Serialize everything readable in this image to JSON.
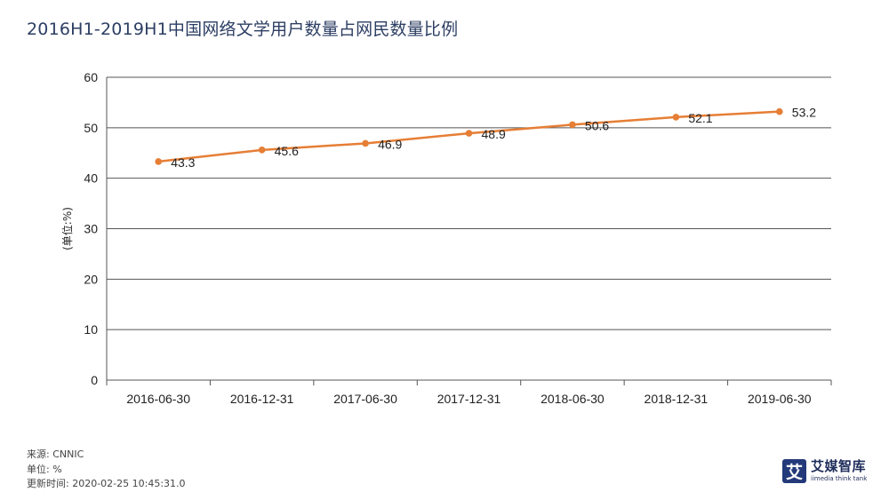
{
  "title": "2016H1-2019H1中国网络文学用户数量占网民数量比例",
  "chart_data": {
    "type": "line",
    "title": "2016H1-2019H1中国网络文学用户数量占网民数量比例",
    "xlabel": "",
    "ylabel": "(单位:%)",
    "categories": [
      "2016-06-30",
      "2016-12-31",
      "2017-06-30",
      "2017-12-31",
      "2018-06-30",
      "2018-12-31",
      "2019-06-30"
    ],
    "series": [
      {
        "values": [
          43.3,
          45.6,
          46.9,
          48.9,
          50.6,
          52.1,
          53.2
        ]
      }
    ],
    "ylim": [
      0,
      60
    ],
    "yticks": [
      0,
      10,
      20,
      30,
      40,
      50,
      60
    ],
    "grid": true,
    "color": "#e67e35",
    "data_labels": true
  },
  "footer": {
    "source": "来源: CNNIC",
    "unit": "单位: %",
    "updated": "更新时间: 2020-02-25 10:45:31.0"
  },
  "brand": {
    "mark": "艾",
    "name": "艾媒智库",
    "sub": "iimedia think tank"
  }
}
